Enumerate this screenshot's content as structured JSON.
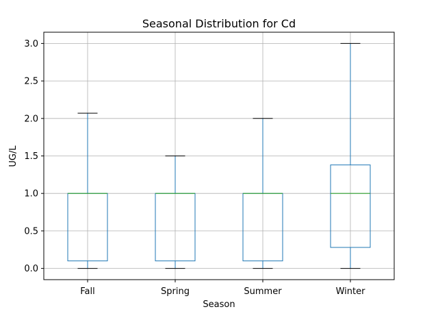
{
  "chart_data": {
    "type": "box",
    "title": "Seasonal Distribution for Cd",
    "xlabel": "Season",
    "ylabel": "UG/L",
    "categories": [
      "Fall",
      "Spring",
      "Summer",
      "Winter"
    ],
    "boxes": [
      {
        "category": "Fall",
        "whisker_low": 0.0,
        "q1": 0.1,
        "median": 1.0,
        "q3": 1.0,
        "whisker_high": 2.07
      },
      {
        "category": "Spring",
        "whisker_low": 0.0,
        "q1": 0.1,
        "median": 1.0,
        "q3": 1.0,
        "whisker_high": 1.5
      },
      {
        "category": "Summer",
        "whisker_low": 0.0,
        "q1": 0.1,
        "median": 1.0,
        "q3": 1.0,
        "whisker_high": 2.0
      },
      {
        "category": "Winter",
        "whisker_low": 0.0,
        "q1": 0.28,
        "median": 1.0,
        "q3": 1.38,
        "whisker_high": 3.0
      }
    ],
    "yticks": [
      "0.0",
      "0.5",
      "1.0",
      "1.5",
      "2.0",
      "2.5",
      "3.0"
    ],
    "ylim": [
      -0.15,
      3.15
    ],
    "grid": true,
    "colors": {
      "box": "#1f77b4",
      "median": "#2ca02c",
      "cap": "#000000",
      "grid": "#b0b0b0"
    }
  }
}
